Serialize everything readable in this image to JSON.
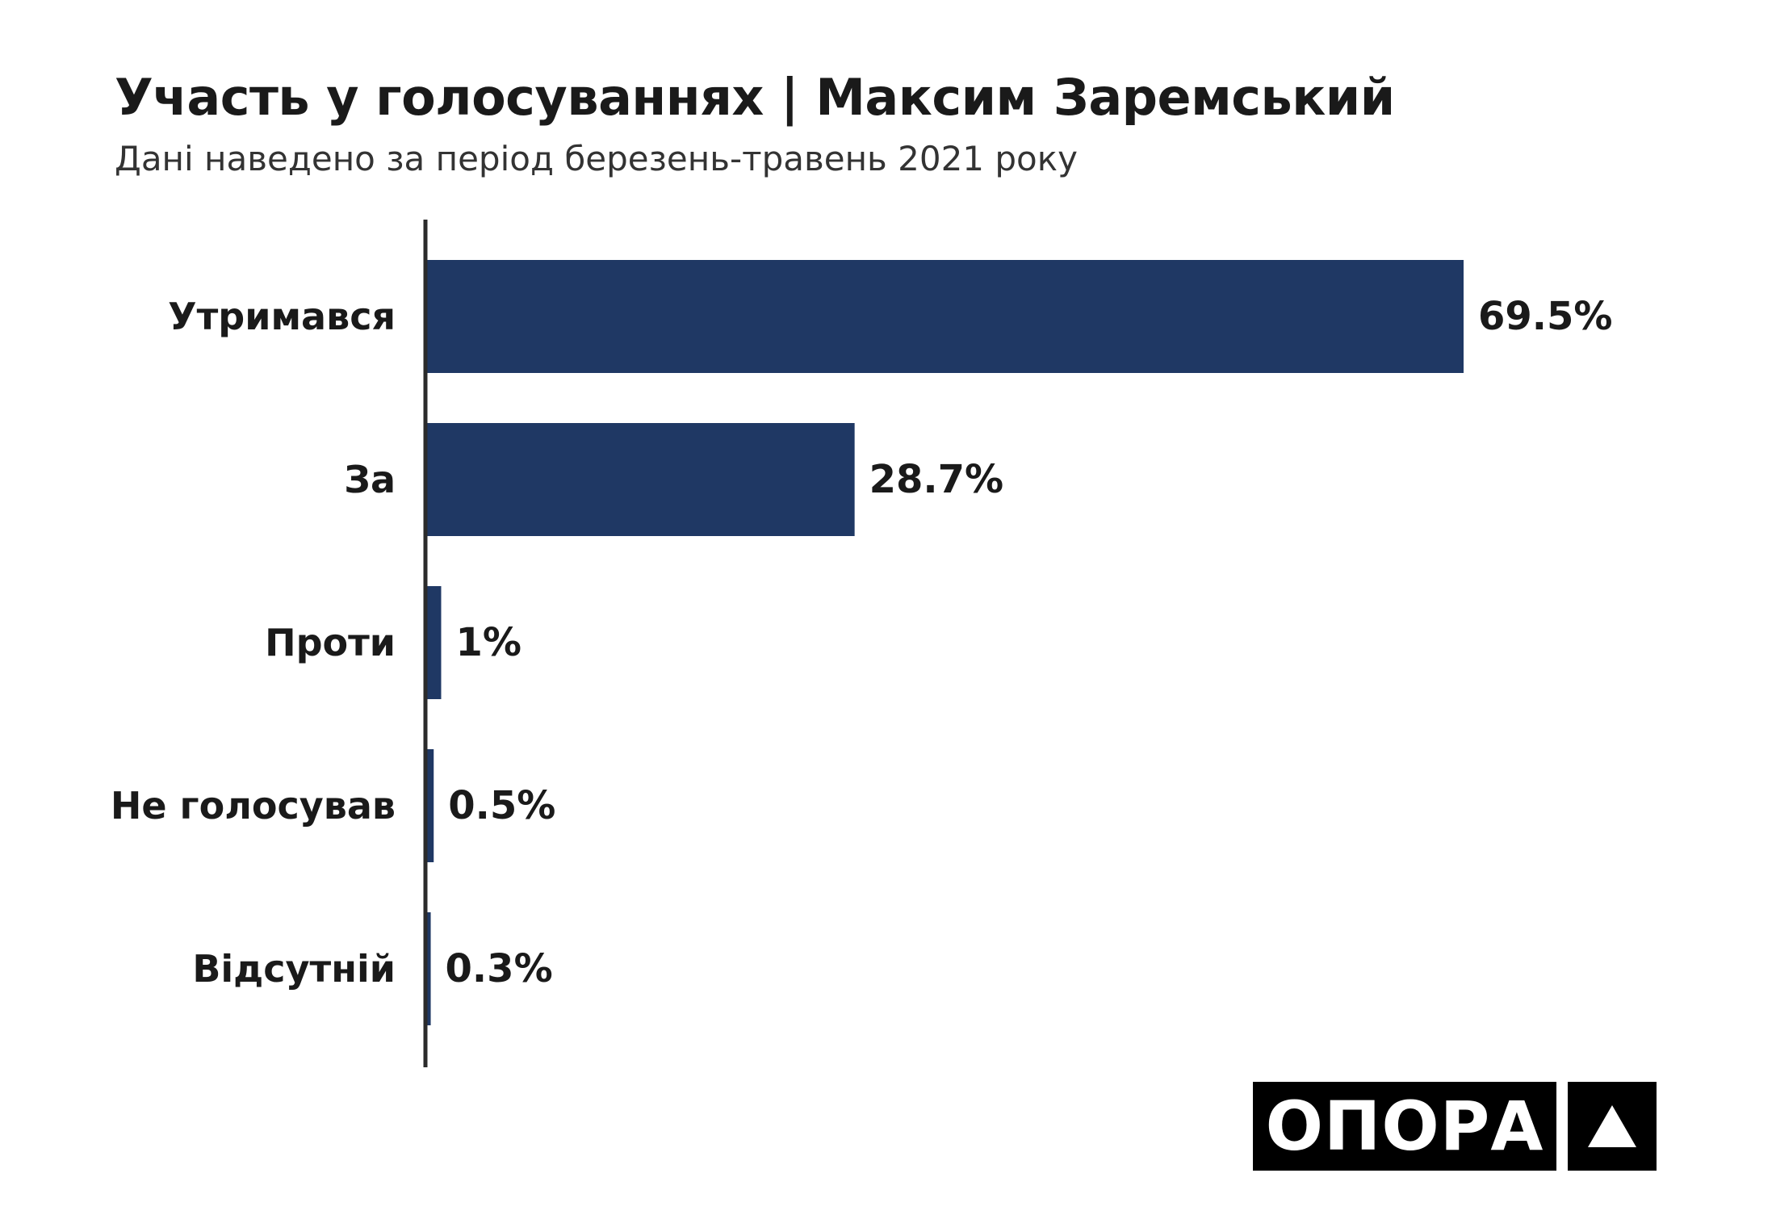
{
  "title": "Участь у голосуваннях | Максим Заремський",
  "subtitle": "Дані наведено за період березень-травень 2021 року",
  "colors": {
    "bar": "#1f3864",
    "axis": "#2b2b2b",
    "text": "#1a1a1a"
  },
  "chart_data": {
    "type": "bar",
    "orientation": "horizontal",
    "categories": [
      "Утримався",
      "За",
      "Проти",
      "Не голосував",
      "Відсутній"
    ],
    "values": [
      69.5,
      28.7,
      1.0,
      0.5,
      0.3
    ],
    "value_labels": [
      "69.5%",
      "28.7%",
      "1%",
      "0.5%",
      "0.3%"
    ],
    "unit": "%",
    "xlim": [
      0,
      100
    ],
    "grid": false,
    "legend": "none"
  },
  "logo": {
    "wordmark": "ОПОРА",
    "icon": "triangle-icon"
  }
}
